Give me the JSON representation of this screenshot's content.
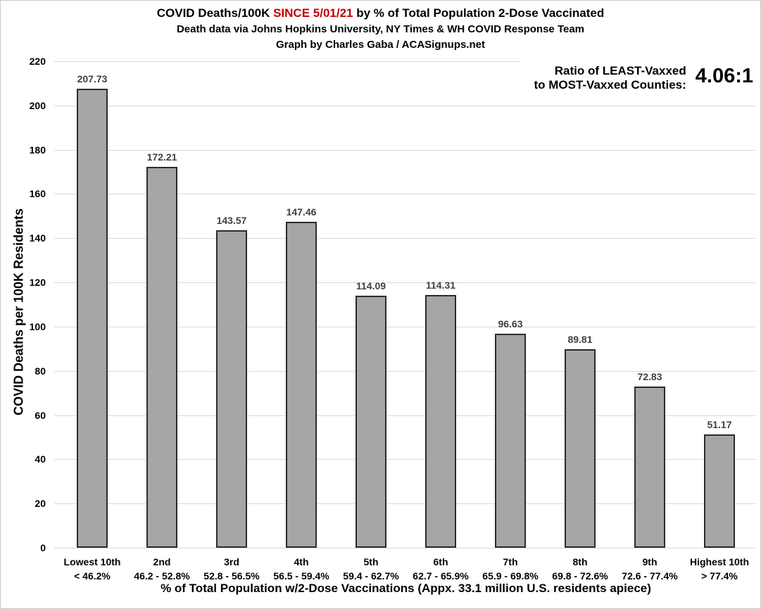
{
  "header": {
    "title_prefix": "COVID Deaths/100K ",
    "title_highlight": "SINCE 5/01/21",
    "title_suffix": " by % of Total Population 2-Dose Vaccinated",
    "highlight_color": "#c00000",
    "subtitle1": "Death data via Johns Hopkins University, NY Times & WH COVID Response Team",
    "subtitle2": "Graph by Charles Gaba / ACASignups.net"
  },
  "ratio": {
    "label_line1": "Ratio of LEAST-Vaxxed",
    "label_line2": "to MOST-Vaxxed Counties:",
    "value": "4.06:1"
  },
  "chart_data": {
    "type": "bar",
    "title": "COVID Deaths/100K SINCE 5/01/21 by % of Total Population 2-Dose Vaccinated",
    "categories": [
      {
        "tier": "Lowest 10th",
        "range": "< 46.2%"
      },
      {
        "tier": "2nd",
        "range": "46.2 - 52.8%"
      },
      {
        "tier": "3rd",
        "range": "52.8 - 56.5%"
      },
      {
        "tier": "4th",
        "range": "56.5 - 59.4%"
      },
      {
        "tier": "5th",
        "range": "59.4 - 62.7%"
      },
      {
        "tier": "6th",
        "range": "62.7 - 65.9%"
      },
      {
        "tier": "7th",
        "range": "65.9 - 69.8%"
      },
      {
        "tier": "8th",
        "range": "69.8 - 72.6%"
      },
      {
        "tier": "9th",
        "range": "72.6 - 77.4%"
      },
      {
        "tier": "Highest 10th",
        "range": "> 77.4%"
      }
    ],
    "values": [
      207.73,
      172.21,
      143.57,
      147.46,
      114.09,
      114.31,
      96.63,
      89.81,
      72.83,
      51.17
    ],
    "xlabel": "% of Total Population w/2-Dose Vaccinations (Appx. 33.1 million U.S. residents apiece)",
    "ylabel": "COVID Deaths per 100K Residents",
    "ylim": [
      0,
      220
    ],
    "ytick_step": 20,
    "grid": true,
    "legend": "none",
    "bar_color": "#a6a6a6",
    "bar_border_color": "#2b2b2b",
    "value_label_color": "#404040",
    "gridline_color": "#d9d9d9"
  }
}
